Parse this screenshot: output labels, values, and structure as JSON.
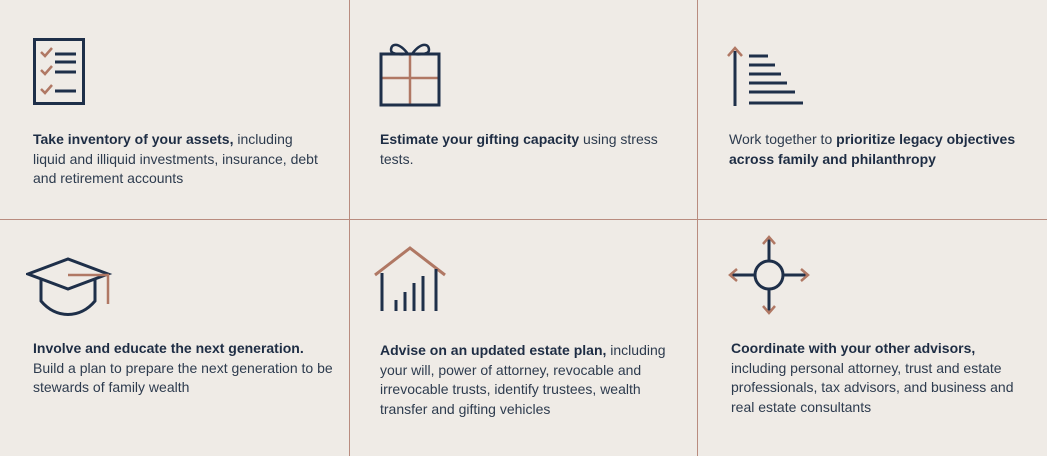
{
  "cells": [
    {
      "bold": "Take inventory of your assets,",
      "rest": " including liquid and illiquid investments, insurance, debt and retirement accounts"
    },
    {
      "bold": "Estimate your gifting capacity",
      "rest": " using stress tests."
    },
    {
      "pre": "Work together to ",
      "bold": "prioritize legacy objectives across family and philanthropy"
    },
    {
      "bold": "Involve and educate the next generation.",
      "rest": " Build a plan to prepare the next generation to be stewards of family wealth"
    },
    {
      "bold": "Advise on an updated estate plan,",
      "rest": " including your will, power of attorney, revocable and irrevocable trusts, identify trustees, wealth transfer and gifting vehicles"
    },
    {
      "bold": "Coordinate with your other advisors,",
      "rest": " including personal attorney, trust and estate professionals, tax advisors, and business and real estate consultants"
    }
  ],
  "colors": {
    "navy": "#1e2f49",
    "copper": "#b07864",
    "background": "#efebe6",
    "divider": "#b98c7f"
  },
  "icons": [
    "checklist-icon",
    "gift-icon",
    "priority-bars-icon",
    "graduation-cap-icon",
    "house-chart-icon",
    "compass-arrows-icon"
  ]
}
